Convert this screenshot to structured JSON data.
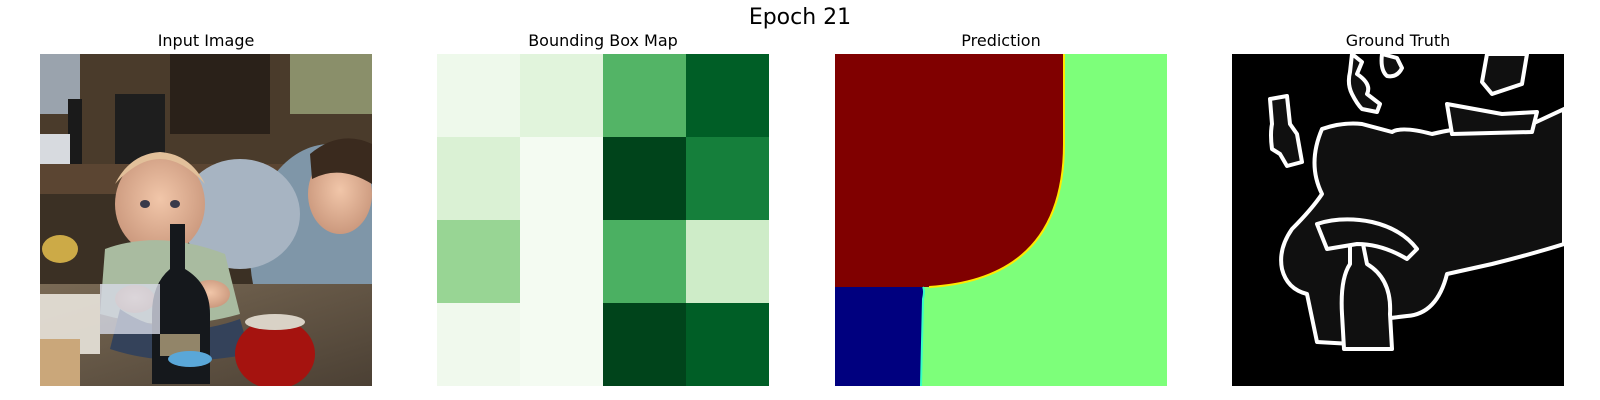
{
  "figure": {
    "title": "Epoch 21"
  },
  "panels": [
    {
      "title": "Input Image",
      "kind": "photo"
    },
    {
      "title": "Bounding Box Map",
      "kind": "heatmap"
    },
    {
      "title": "Prediction",
      "kind": "segmentation"
    },
    {
      "title": "Ground Truth",
      "kind": "edge-map"
    }
  ],
  "bbox_map": {
    "colormap": "Greens",
    "grid": [
      [
        0.06,
        0.14,
        0.58,
        0.92
      ],
      [
        0.17,
        0.02,
        1.0,
        0.8
      ],
      [
        0.4,
        0.02,
        0.6,
        0.22
      ],
      [
        0.05,
        0.02,
        1.0,
        0.92
      ]
    ]
  },
  "prediction": {
    "colors": {
      "dark-red": "#800000",
      "navy": "#00007f",
      "green": "#7dff7a",
      "yellow-edge": "#ffea00",
      "cyan-edge": "#37ffc4"
    }
  },
  "ground_truth": {
    "background": "#000000",
    "fill": "#101010",
    "edge": "#ffffff"
  }
}
